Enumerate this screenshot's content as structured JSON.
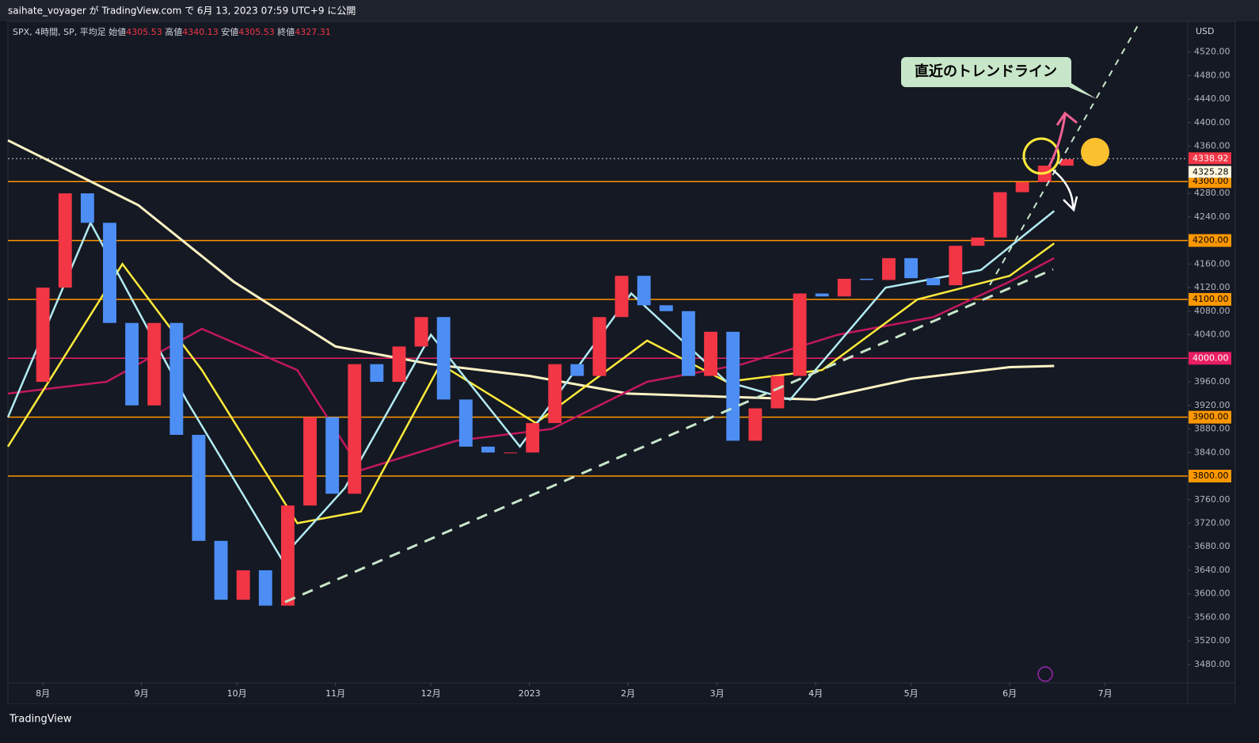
{
  "header": {
    "caption": "saihate_voyager が TradingView.com で 6月 13, 2023 07:59 UTC+9 に公開"
  },
  "footer": {
    "brand": "TradingView"
  },
  "chart_data": {
    "type": "candlestick",
    "legend": {
      "symbol": "SPX, 4時間, SP, 平均足",
      "open_label": "始値",
      "open": 4305.53,
      "high_label": "高値",
      "high": 4340.13,
      "low_label": "安値",
      "low": 4305.53,
      "close_label": "終値",
      "close": 4327.31
    },
    "currency": "USD",
    "annotation": "直近のトレンドライン",
    "xlim": [
      -11,
      360
    ],
    "ylim": [
      3449,
      4572
    ],
    "xticks": [
      {
        "value": 0,
        "label": "8月"
      },
      {
        "value": 31,
        "label": "9月"
      },
      {
        "value": 61,
        "label": "10月"
      },
      {
        "value": 92,
        "label": "11月"
      },
      {
        "value": 122,
        "label": "12月"
      },
      {
        "value": 153,
        "label": "2023"
      },
      {
        "value": 184,
        "label": "2月"
      },
      {
        "value": 212,
        "label": "3月"
      },
      {
        "value": 243,
        "label": "4月"
      },
      {
        "value": 273,
        "label": "5月"
      },
      {
        "value": 304,
        "label": "6月"
      },
      {
        "value": 334,
        "label": "7月"
      }
    ],
    "yticks": [
      {
        "value": 3480,
        "label": "3480.00"
      },
      {
        "value": 3520,
        "label": "3520.00"
      },
      {
        "value": 3560,
        "label": "3560.00"
      },
      {
        "value": 3600,
        "label": "3600.00"
      },
      {
        "value": 3640,
        "label": "3640.00"
      },
      {
        "value": 3680,
        "label": "3680.00"
      },
      {
        "value": 3720,
        "label": "3720.00"
      },
      {
        "value": 3760,
        "label": "3760.00"
      },
      {
        "value": 3840,
        "label": "3840.00"
      },
      {
        "value": 3880,
        "label": "3880.00"
      },
      {
        "value": 3920,
        "label": "3920.00"
      },
      {
        "value": 3960,
        "label": "3960.00"
      },
      {
        "value": 4040,
        "label": "4040.00"
      },
      {
        "value": 4080,
        "label": "4080.00"
      },
      {
        "value": 4120,
        "label": "4120.00"
      },
      {
        "value": 4160,
        "label": "4160.00"
      },
      {
        "value": 4240,
        "label": "4240.00"
      },
      {
        "value": 4280,
        "label": "4280.00"
      },
      {
        "value": 4360,
        "label": "4360.00"
      },
      {
        "value": 4400,
        "label": "4400.00"
      },
      {
        "value": 4440,
        "label": "4440.00"
      },
      {
        "value": 4480,
        "label": "4480.00"
      },
      {
        "value": 4520,
        "label": "4520.00"
      }
    ],
    "up_color": "#f23645",
    "down_color": "#4d8ef5",
    "x": [
      -7,
      0,
      7,
      14,
      21,
      28,
      35,
      42,
      49,
      56,
      63,
      70,
      77,
      84,
      91,
      98,
      105,
      112,
      119,
      126,
      133,
      140,
      147,
      154,
      161,
      168,
      175,
      182,
      189,
      196,
      203,
      210,
      217,
      224,
      231,
      238,
      245,
      252,
      259,
      266,
      273,
      280,
      287,
      294,
      301,
      308,
      315,
      322
    ],
    "values": [
      3960,
      4120,
      4280,
      4230,
      4060,
      3920,
      4060,
      3870,
      3690,
      3590,
      3640,
      3580,
      3750,
      3900,
      3770,
      3990,
      3960,
      4020,
      4070,
      3930,
      3850,
      3840,
      3840,
      3890,
      3990,
      3970,
      4070,
      4140,
      4090,
      4080,
      3970,
      4045,
      3860,
      3915,
      3970,
      4110,
      4105,
      4135,
      4133,
      4170,
      4136,
      4124,
      4191,
      4205,
      4282,
      4299,
      4327,
      4338
    ],
    "series": [
      {
        "color": "#fff3c4",
        "x": [
          -11,
          30,
          60,
          92,
          122,
          153,
          184,
          212,
          243,
          273,
          304,
          318
        ],
        "values": [
          4370,
          4260,
          4130,
          4020,
          3990,
          3970,
          3940,
          3935,
          3930,
          3965,
          3985,
          3987
        ]
      },
      {
        "color": "#c2185b",
        "x": [
          -11,
          20,
          50,
          80,
          100,
          130,
          160,
          190,
          220,
          250,
          280,
          304,
          318
        ],
        "values": [
          3940,
          3960,
          4050,
          3980,
          3810,
          3860,
          3880,
          3960,
          3990,
          4040,
          4070,
          4130,
          4170
        ]
      },
      {
        "color": "#ffeb3b",
        "x": [
          -11,
          25,
          50,
          80,
          100,
          125,
          155,
          190,
          215,
          245,
          275,
          304,
          318
        ],
        "values": [
          3850,
          4160,
          3980,
          3720,
          3740,
          3990,
          3890,
          4030,
          3960,
          3980,
          4100,
          4140,
          4195
        ]
      },
      {
        "color": "#b2ebf2",
        "x": [
          -11,
          15,
          45,
          75,
          95,
          122,
          150,
          185,
          215,
          235,
          265,
          295,
          318
        ],
        "values": [
          3900,
          4230,
          3930,
          3660,
          3780,
          4040,
          3850,
          4110,
          3960,
          3930,
          4120,
          4150,
          4250
        ]
      }
    ],
    "levels": {
      "values": [
        4300,
        4200,
        4100,
        4000,
        3900,
        3800
      ],
      "value_labels": [
        "4300.00",
        "4200.00",
        "4100.00",
        "4000.00",
        "3900.00",
        "3800.00"
      ],
      "colors": [
        "#ff9800",
        "#ff9800",
        "#ff9800",
        "#e91e63",
        "#ff9800",
        "#ff9800"
      ]
    },
    "price_labels": [
      {
        "value": 4338.92,
        "color": "#f23645"
      },
      {
        "value": 4325.28,
        "color": "#fff8e1"
      }
    ]
  }
}
